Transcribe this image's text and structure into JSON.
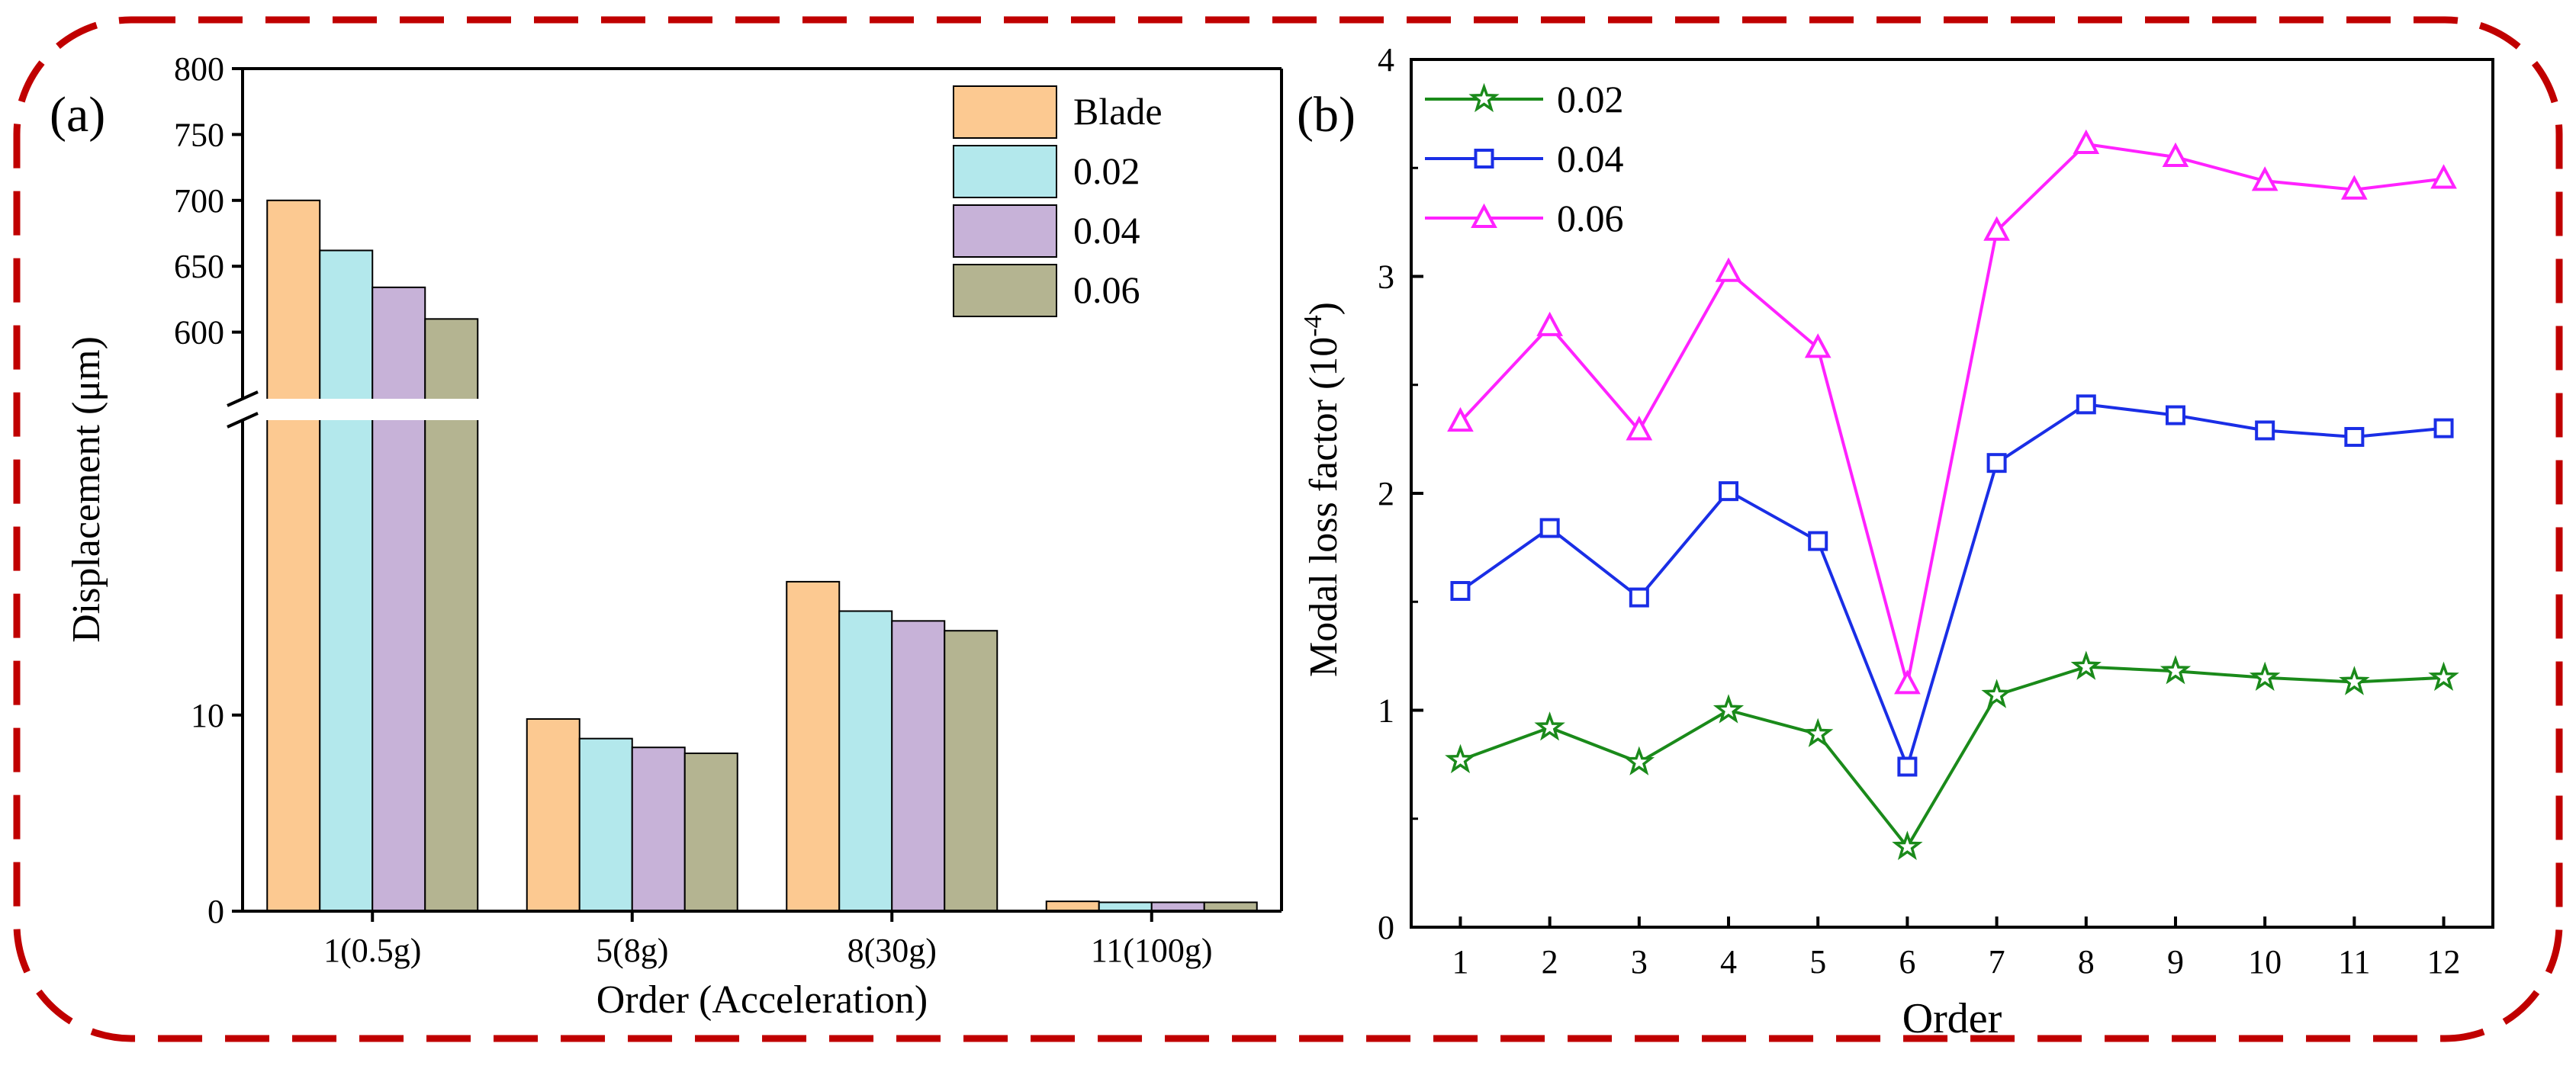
{
  "chart_data": [
    {
      "type": "bar",
      "panel_label": "(a)",
      "xlabel": "Order (Acceleration)",
      "ylabel": "Displacement (μm)",
      "categories": [
        "1(0.5g)",
        "5(8g)",
        "8(30g)",
        "11(100g)"
      ],
      "axis_break": true,
      "y_lower": {
        "range": [
          0,
          25
        ],
        "ticks": [
          "0",
          "10"
        ]
      },
      "y_upper": {
        "range": [
          550,
          800
        ],
        "ticks": [
          "600",
          "650",
          "700",
          "750",
          "800"
        ]
      },
      "series": [
        {
          "name": "Blade",
          "color": "#fcc991",
          "values": [
            700,
            9.8,
            16.8,
            0.5
          ]
        },
        {
          "name": "0.02",
          "color": "#b3e8ec",
          "values": [
            662,
            8.8,
            15.3,
            0.45
          ]
        },
        {
          "name": "0.04",
          "color": "#c7b2d8",
          "values": [
            634,
            8.35,
            14.8,
            0.45
          ]
        },
        {
          "name": "0.06",
          "color": "#b4b491",
          "values": [
            610,
            8.05,
            14.3,
            0.45
          ]
        }
      ],
      "legend_position": "top-right"
    },
    {
      "type": "line",
      "panel_label": "(b)",
      "xlabel": "Order",
      "ylabel_main": "Modal loss factor",
      "ylabel_unit_open": "(10",
      "ylabel_unit_exp": "-4",
      "ylabel_unit_close": ")",
      "x": [
        1,
        2,
        3,
        4,
        5,
        6,
        7,
        8,
        9,
        10,
        11,
        12
      ],
      "xlim": [
        0.45,
        12.55
      ],
      "ylim": [
        0,
        4
      ],
      "yticks": [
        "0",
        "1",
        "2",
        "3",
        "4"
      ],
      "series": [
        {
          "name": "0.02",
          "color": "#1a8a1a",
          "marker": "star",
          "values": [
            0.77,
            0.92,
            0.76,
            1.0,
            0.89,
            0.37,
            1.07,
            1.2,
            1.18,
            1.15,
            1.13,
            1.15
          ]
        },
        {
          "name": "0.04",
          "color": "#1a2ee6",
          "marker": "square",
          "values": [
            1.55,
            1.84,
            1.52,
            2.01,
            1.78,
            0.74,
            2.14,
            2.41,
            2.36,
            2.29,
            2.26,
            2.3
          ]
        },
        {
          "name": "0.06",
          "color": "#ff22ff",
          "marker": "triangle",
          "values": [
            2.33,
            2.77,
            2.29,
            3.02,
            2.67,
            1.12,
            3.21,
            3.61,
            3.55,
            3.44,
            3.4,
            3.45
          ]
        }
      ],
      "legend_position": "top-left"
    }
  ]
}
